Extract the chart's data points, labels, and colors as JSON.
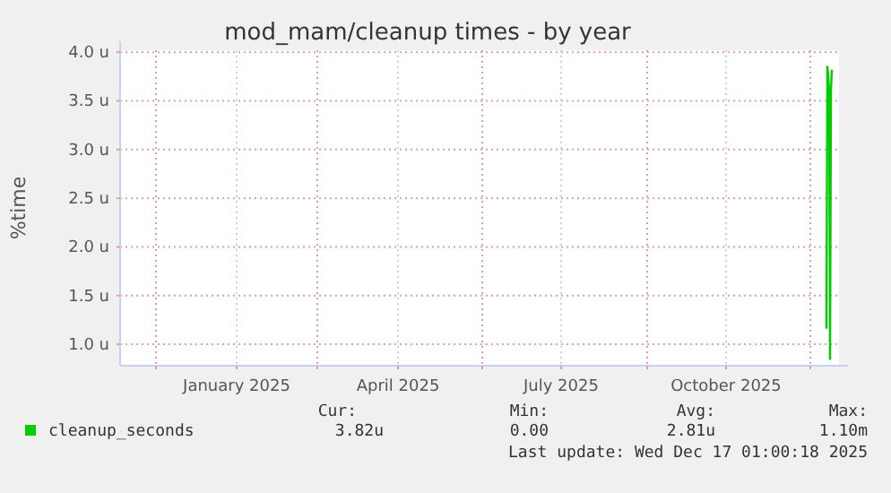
{
  "chart_data": {
    "type": "line",
    "title": "mod_mam/cleanup times - by year",
    "ylabel": "%time",
    "x": [
      "2025-12-10T00:00",
      "2025-12-10T12:00",
      "2025-12-11T00:00",
      "2025-12-11T12:00",
      "2025-12-12T00:00",
      "2025-12-12T12:00",
      "2025-12-13T00:00"
    ],
    "series": [
      {
        "name": "cleanup_seconds",
        "color": "#00cc00",
        "values": [
          1.16,
          3.85,
          3.75,
          3.6,
          0.85,
          3.6,
          3.82
        ]
      }
    ],
    "xlim": [
      "2024-11-11",
      "2025-12-17"
    ],
    "xticks": [
      {
        "value": "2024-12-01",
        "label": null
      },
      {
        "value": "2025-01-15",
        "label": "January 2025"
      },
      {
        "value": "2025-03-01",
        "label": null
      },
      {
        "value": "2025-04-15",
        "label": "April 2025"
      },
      {
        "value": "2025-06-01",
        "label": null
      },
      {
        "value": "2025-07-15",
        "label": "July 2025"
      },
      {
        "value": "2025-09-01",
        "label": null
      },
      {
        "value": "2025-10-15",
        "label": "October 2025"
      },
      {
        "value": "2025-12-01",
        "label": null
      }
    ],
    "ylim": [
      0.78,
      4.02
    ],
    "yticks": [
      {
        "value": 1,
        "label": "1.0 u"
      },
      {
        "value": 1.5,
        "label": "1.5 u"
      },
      {
        "value": 2,
        "label": "2.0 u"
      },
      {
        "value": 2.5,
        "label": "2.5 u"
      },
      {
        "value": 3,
        "label": "3.0 u"
      },
      {
        "value": 3.5,
        "label": "3.5 u"
      },
      {
        "value": 4,
        "label": "4.0 u"
      }
    ],
    "grid": true,
    "legend": "bottom",
    "marker": "none",
    "line_style": "solid",
    "annotations": [
      "Cur:",
      "Min:",
      "Avg:",
      "Max:",
      "3.82u",
      "0.00",
      "2.81u",
      "1.10m",
      "Last update: Wed Dec 17 01:00:18 2025"
    ]
  }
}
